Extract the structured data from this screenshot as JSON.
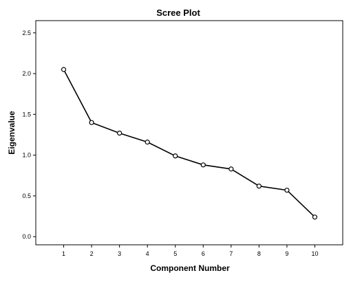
{
  "chart_data": {
    "type": "line",
    "title": "Scree Plot",
    "xlabel": "Component Number",
    "ylabel": "Eigenvalue",
    "x": [
      1,
      2,
      3,
      4,
      5,
      6,
      7,
      8,
      9,
      10
    ],
    "y": [
      2.05,
      1.4,
      1.27,
      1.16,
      0.99,
      0.88,
      0.83,
      0.62,
      0.57,
      0.24
    ],
    "xticks": [
      "1",
      "2",
      "3",
      "4",
      "5",
      "6",
      "7",
      "8",
      "9",
      "10"
    ],
    "yticks": [
      "0.0",
      "0.5",
      "1.0",
      "1.5",
      "2.0",
      "2.5"
    ],
    "ytick_values": [
      0,
      0.5,
      1.0,
      1.5,
      2.0,
      2.5
    ],
    "xlim": [
      0,
      11
    ],
    "ylim": [
      -0.1,
      2.65
    ],
    "grid": false,
    "marker": "circle",
    "line_color": "#000000"
  }
}
